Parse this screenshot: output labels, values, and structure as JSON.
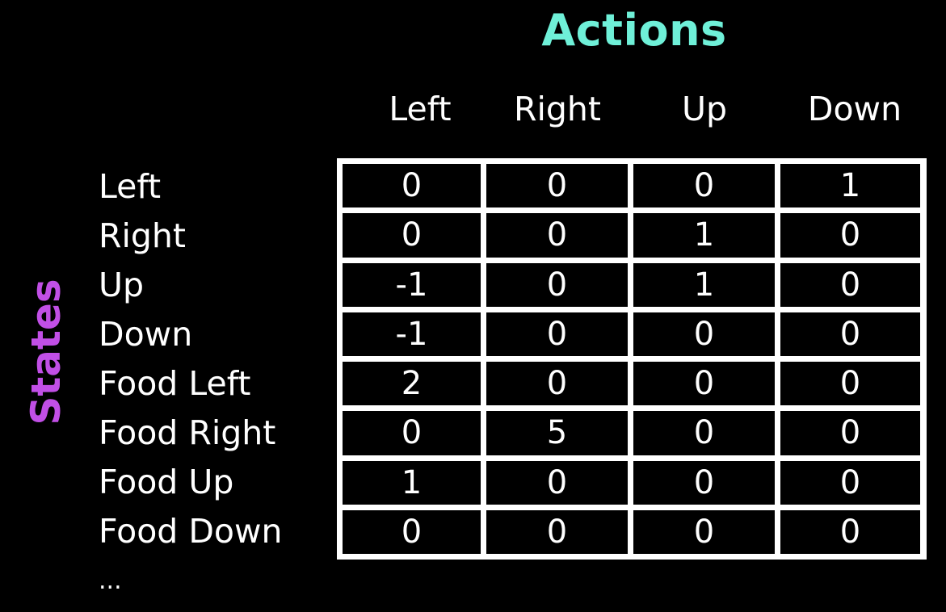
{
  "title_actions": "Actions",
  "title_states": "States",
  "columns": [
    "Left",
    "Right",
    "Up",
    "Down"
  ],
  "rows": [
    "Left",
    "Right",
    "Up",
    "Down",
    "Food Left",
    "Food Right",
    "Food Up",
    "Food Down"
  ],
  "ellipsis": "...",
  "values": [
    [
      "0",
      "0",
      "0",
      "1"
    ],
    [
      "0",
      "0",
      "1",
      "0"
    ],
    [
      "-1",
      "0",
      "1",
      "0"
    ],
    [
      "-1",
      "0",
      "0",
      "0"
    ],
    [
      "2",
      "0",
      "0",
      "0"
    ],
    [
      "0",
      "5",
      "0",
      "0"
    ],
    [
      "1",
      "0",
      "0",
      "0"
    ],
    [
      "0",
      "0",
      "0",
      "0"
    ]
  ],
  "colors": {
    "actions": "#6ff0d8",
    "states": "#c14fe6",
    "background": "#000000",
    "grid": "#ffffff"
  }
}
